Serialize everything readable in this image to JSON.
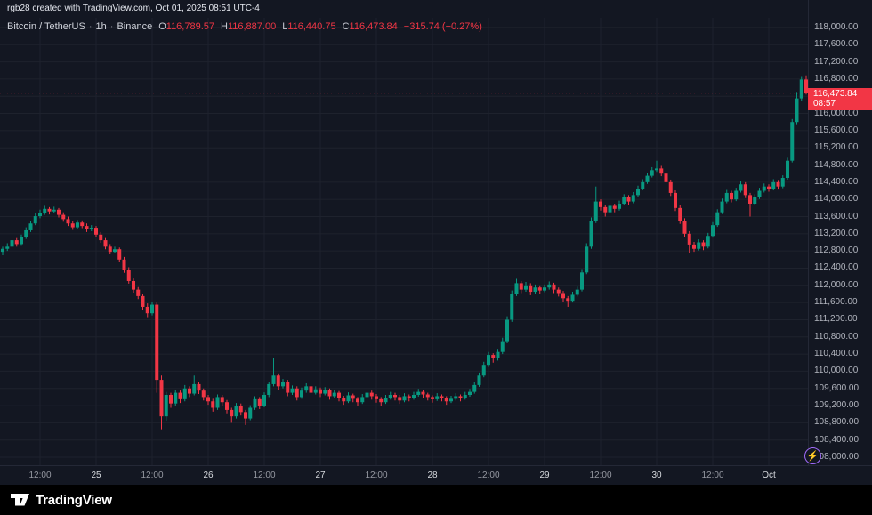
{
  "window": {
    "attribution": "rgb28 created with TradingView.com, Oct 01, 2025 08:51 UTC-4"
  },
  "legend": {
    "symbol": "Bitcoin / TetherUS",
    "dot": "·",
    "interval": "1h",
    "exchange": "Binance",
    "o_label": "O",
    "o": "116,789.57",
    "h_label": "H",
    "h": "116,887.00",
    "l_label": "L",
    "l": "116,440.75",
    "c_label": "C",
    "c": "116,473.84",
    "change": "−315.74 (−0.27%)"
  },
  "price_label": {
    "price": "116,473.84",
    "countdown": "08:57"
  },
  "icons": {
    "lightning": "⚡"
  },
  "footer": {
    "brand": "TradingView"
  },
  "colors": {
    "background": "#131722",
    "up": "#089981",
    "down": "#F23645",
    "grid": "#1e222d",
    "axis_text": "#B2B5BE",
    "footer_bg": "#000000",
    "accent_purple": "#A06AF9",
    "price_label_bg": "#F23645"
  },
  "chart_data": {
    "type": "candlestick",
    "title": "Bitcoin / TetherUS",
    "exchange": "Binance",
    "interval": "1h",
    "ohlc_display": {
      "open": 116789.57,
      "high": 116887.0,
      "low": 116440.75,
      "close": 116473.84,
      "change": -315.74,
      "change_pct": -0.27
    },
    "last_price": 116473.84,
    "y_axis": {
      "ylim": [
        107815,
        118640
      ],
      "tick_start": 108000,
      "tick_end": 118000,
      "tick_step": 400,
      "grid": true
    },
    "x_axis": {
      "labels": [
        {
          "i": 8,
          "t": "12:00"
        },
        {
          "i": 20,
          "t": "25",
          "major": true
        },
        {
          "i": 32,
          "t": "12:00"
        },
        {
          "i": 44,
          "t": "26",
          "major": true
        },
        {
          "i": 56,
          "t": "12:00"
        },
        {
          "i": 68,
          "t": "27",
          "major": true
        },
        {
          "i": 80,
          "t": "12:00"
        },
        {
          "i": 92,
          "t": "28",
          "major": true
        },
        {
          "i": 104,
          "t": "12:00"
        },
        {
          "i": 116,
          "t": "29",
          "major": true
        },
        {
          "i": 128,
          "t": "12:00"
        },
        {
          "i": 140,
          "t": "30",
          "major": true
        },
        {
          "i": 152,
          "t": "12:00"
        },
        {
          "i": 164,
          "t": "Oct",
          "major": true
        }
      ]
    },
    "candles": [
      [
        112780,
        112900,
        112700,
        112850
      ],
      [
        112850,
        112980,
        112800,
        112900
      ],
      [
        112900,
        113120,
        112860,
        113050
      ],
      [
        113050,
        113100,
        112900,
        112960
      ],
      [
        112960,
        113180,
        112920,
        113120
      ],
      [
        113120,
        113350,
        113080,
        113280
      ],
      [
        113280,
        113500,
        113240,
        113440
      ],
      [
        113440,
        113680,
        113400,
        113610
      ],
      [
        113610,
        113760,
        113560,
        113690
      ],
      [
        113690,
        113850,
        113640,
        113780
      ],
      [
        113780,
        113820,
        113650,
        113720
      ],
      [
        113720,
        113830,
        113680,
        113760
      ],
      [
        113760,
        113800,
        113580,
        113640
      ],
      [
        113640,
        113700,
        113480,
        113540
      ],
      [
        113540,
        113600,
        113380,
        113440
      ],
      [
        113440,
        113500,
        113290,
        113350
      ],
      [
        113350,
        113520,
        113310,
        113460
      ],
      [
        113460,
        113510,
        113330,
        113380
      ],
      [
        113380,
        113440,
        113240,
        113300
      ],
      [
        113300,
        113400,
        113260,
        113340
      ],
      [
        113340,
        113380,
        113120,
        113180
      ],
      [
        113180,
        113240,
        112990,
        113050
      ],
      [
        113050,
        113100,
        112840,
        112900
      ],
      [
        112900,
        112960,
        112720,
        112780
      ],
      [
        112780,
        112900,
        112740,
        112840
      ],
      [
        112840,
        112880,
        112540,
        112600
      ],
      [
        112600,
        112660,
        112290,
        112350
      ],
      [
        112350,
        112420,
        112040,
        112100
      ],
      [
        112100,
        112160,
        111830,
        111900
      ],
      [
        111900,
        111960,
        111680,
        111750
      ],
      [
        111750,
        111800,
        111420,
        111500
      ],
      [
        111500,
        111580,
        111260,
        111350
      ],
      [
        111350,
        111620,
        111300,
        111550
      ],
      [
        111550,
        111600,
        109500,
        109800
      ],
      [
        109800,
        109900,
        108650,
        108950
      ],
      [
        108950,
        109520,
        108850,
        109450
      ],
      [
        109450,
        109500,
        109150,
        109250
      ],
      [
        109250,
        109560,
        109200,
        109500
      ],
      [
        109500,
        109550,
        109260,
        109350
      ],
      [
        109350,
        109680,
        109300,
        109600
      ],
      [
        109600,
        109650,
        109400,
        109480
      ],
      [
        109480,
        109900,
        109440,
        109700
      ],
      [
        109700,
        109750,
        109470,
        109550
      ],
      [
        109550,
        109600,
        109320,
        109400
      ],
      [
        109400,
        109450,
        109220,
        109300
      ],
      [
        109300,
        109360,
        109060,
        109150
      ],
      [
        109150,
        109460,
        109100,
        109400
      ],
      [
        109400,
        109450,
        109200,
        109280
      ],
      [
        109280,
        109330,
        109020,
        109100
      ],
      [
        109100,
        109150,
        108800,
        108950
      ],
      [
        108950,
        109260,
        108900,
        109200
      ],
      [
        109200,
        109250,
        108970,
        109050
      ],
      [
        109050,
        109100,
        108750,
        108900
      ],
      [
        108900,
        109210,
        108860,
        109150
      ],
      [
        109150,
        109420,
        109100,
        109350
      ],
      [
        109350,
        109400,
        109120,
        109200
      ],
      [
        109200,
        109510,
        109160,
        109450
      ],
      [
        109450,
        109760,
        109400,
        109700
      ],
      [
        109700,
        110300,
        109650,
        109900
      ],
      [
        109900,
        109950,
        109560,
        109650
      ],
      [
        109650,
        109820,
        109600,
        109750
      ],
      [
        109750,
        109800,
        109420,
        109500
      ],
      [
        109500,
        109670,
        109450,
        109600
      ],
      [
        109600,
        109650,
        109320,
        109400
      ],
      [
        109400,
        109620,
        109360,
        109550
      ],
      [
        109550,
        109720,
        109500,
        109650
      ],
      [
        109650,
        109700,
        109420,
        109500
      ],
      [
        109500,
        109650,
        109460,
        109580
      ],
      [
        109580,
        109620,
        109400,
        109480
      ],
      [
        109480,
        109630,
        109440,
        109560
      ],
      [
        109560,
        109600,
        109340,
        109420
      ],
      [
        109420,
        109570,
        109380,
        109500
      ],
      [
        109500,
        109540,
        109300,
        109380
      ],
      [
        109380,
        109430,
        109220,
        109300
      ],
      [
        109300,
        109510,
        109260,
        109440
      ],
      [
        109440,
        109480,
        109280,
        109360
      ],
      [
        109360,
        109400,
        109200,
        109280
      ],
      [
        109280,
        109470,
        109240,
        109400
      ],
      [
        109400,
        109570,
        109360,
        109500
      ],
      [
        109500,
        109550,
        109340,
        109420
      ],
      [
        109420,
        109470,
        109270,
        109350
      ],
      [
        109350,
        109400,
        109200,
        109280
      ],
      [
        109280,
        109450,
        109240,
        109380
      ],
      [
        109380,
        109520,
        109340,
        109450
      ],
      [
        109450,
        109500,
        109320,
        109400
      ],
      [
        109400,
        109450,
        109240,
        109320
      ],
      [
        109320,
        109490,
        109280,
        109420
      ],
      [
        109420,
        109460,
        109300,
        109380
      ],
      [
        109380,
        109520,
        109340,
        109450
      ],
      [
        109450,
        109590,
        109410,
        109520
      ],
      [
        109520,
        109560,
        109380,
        109460
      ],
      [
        109460,
        109500,
        109320,
        109400
      ],
      [
        109400,
        109440,
        109270,
        109350
      ],
      [
        109350,
        109490,
        109310,
        109420
      ],
      [
        109420,
        109460,
        109300,
        109380
      ],
      [
        109380,
        109420,
        109220,
        109300
      ],
      [
        109300,
        109430,
        109260,
        109360
      ],
      [
        109360,
        109490,
        109320,
        109420
      ],
      [
        109420,
        109460,
        109300,
        109380
      ],
      [
        109380,
        109520,
        109340,
        109450
      ],
      [
        109450,
        109590,
        109410,
        109520
      ],
      [
        109520,
        109750,
        109480,
        109680
      ],
      [
        109680,
        109970,
        109640,
        109900
      ],
      [
        109900,
        110220,
        109860,
        110150
      ],
      [
        110150,
        110450,
        110100,
        110380
      ],
      [
        110380,
        110420,
        110200,
        110300
      ],
      [
        110300,
        110520,
        110250,
        110450
      ],
      [
        110450,
        110780,
        110400,
        110700
      ],
      [
        110700,
        111280,
        110650,
        111200
      ],
      [
        111200,
        111880,
        111150,
        111800
      ],
      [
        111800,
        112150,
        111750,
        112050
      ],
      [
        112050,
        112100,
        111820,
        111900
      ],
      [
        111900,
        112080,
        111850,
        112000
      ],
      [
        112000,
        112050,
        111770,
        111850
      ],
      [
        111850,
        112020,
        111800,
        111950
      ],
      [
        111950,
        112000,
        111800,
        111880
      ],
      [
        111880,
        112020,
        111840,
        111950
      ],
      [
        111950,
        112090,
        111900,
        112020
      ],
      [
        112020,
        112060,
        111820,
        111900
      ],
      [
        111900,
        111950,
        111740,
        111820
      ],
      [
        111820,
        111870,
        111620,
        111700
      ],
      [
        111700,
        111750,
        111500,
        111640
      ],
      [
        111640,
        111850,
        111600,
        111780
      ],
      [
        111780,
        111970,
        111740,
        111900
      ],
      [
        111900,
        112380,
        111860,
        112300
      ],
      [
        112300,
        112980,
        112260,
        112900
      ],
      [
        112900,
        113580,
        112850,
        113500
      ],
      [
        113500,
        114300,
        113450,
        113950
      ],
      [
        113950,
        114000,
        113740,
        113820
      ],
      [
        113820,
        113880,
        113600,
        113700
      ],
      [
        113700,
        113920,
        113660,
        113850
      ],
      [
        113850,
        113900,
        113700,
        113780
      ],
      [
        113780,
        113970,
        113740,
        113900
      ],
      [
        113900,
        114120,
        113860,
        114050
      ],
      [
        114050,
        114100,
        113870,
        113950
      ],
      [
        113950,
        114170,
        113910,
        114100
      ],
      [
        114100,
        114320,
        114060,
        114250
      ],
      [
        114250,
        114470,
        114210,
        114400
      ],
      [
        114400,
        114620,
        114360,
        114550
      ],
      [
        114550,
        114750,
        114510,
        114680
      ],
      [
        114680,
        114900,
        114640,
        114720
      ],
      [
        114720,
        114780,
        114540,
        114600
      ],
      [
        114600,
        114660,
        114330,
        114400
      ],
      [
        114400,
        114460,
        114080,
        114150
      ],
      [
        114150,
        114210,
        113730,
        113800
      ],
      [
        113800,
        113860,
        113430,
        113500
      ],
      [
        113500,
        113560,
        113130,
        113200
      ],
      [
        113200,
        113260,
        112750,
        112950
      ],
      [
        112950,
        113010,
        112780,
        112850
      ],
      [
        112850,
        113070,
        112810,
        113000
      ],
      [
        113000,
        113050,
        112820,
        112900
      ],
      [
        112900,
        113220,
        112860,
        113150
      ],
      [
        113150,
        113470,
        113110,
        113400
      ],
      [
        113400,
        113770,
        113360,
        113700
      ],
      [
        113700,
        114020,
        113660,
        113950
      ],
      [
        113950,
        114220,
        113910,
        114150
      ],
      [
        114150,
        114200,
        113930,
        114000
      ],
      [
        114000,
        114270,
        113960,
        114200
      ],
      [
        114200,
        114420,
        114160,
        114350
      ],
      [
        114350,
        114400,
        114030,
        114100
      ],
      [
        114100,
        114150,
        113600,
        113900
      ],
      [
        113900,
        114120,
        113860,
        114050
      ],
      [
        114050,
        114270,
        114010,
        114200
      ],
      [
        114200,
        114370,
        114160,
        114300
      ],
      [
        114300,
        114350,
        114180,
        114250
      ],
      [
        114250,
        114470,
        114210,
        114400
      ],
      [
        114400,
        114450,
        114230,
        114300
      ],
      [
        114300,
        114560,
        114260,
        114500
      ],
      [
        114500,
        114970,
        114460,
        114900
      ],
      [
        114900,
        115870,
        114860,
        115800
      ],
      [
        115800,
        116500,
        115750,
        116350
      ],
      [
        116350,
        116850,
        116300,
        116790
      ],
      [
        116789.57,
        116887.0,
        116440.75,
        116473.84
      ]
    ]
  }
}
